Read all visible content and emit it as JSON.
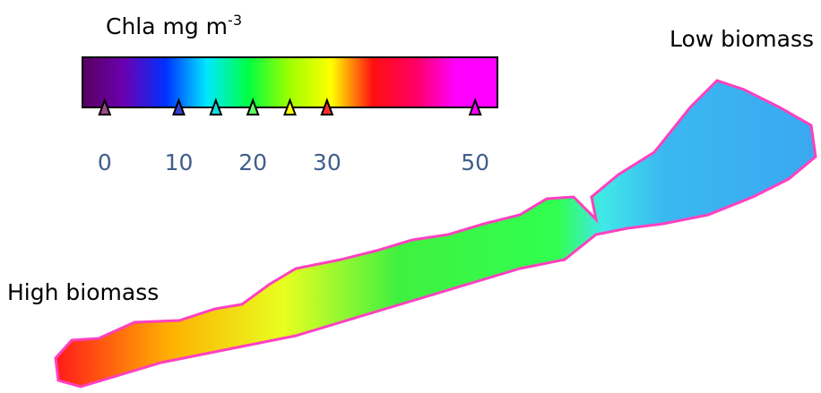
{
  "colorbar": {
    "title": "Chla mg m",
    "title_superscript": "-3",
    "lim": [
      -3,
      53
    ],
    "ticks": [
      0,
      10,
      20,
      30,
      50
    ],
    "gradient": [
      "#5a0060",
      "#6a00b0",
      "#0030ff",
      "#00e8ff",
      "#00ff40",
      "#a0ff00",
      "#ffff00",
      "#ff1010",
      "#ff0060",
      "#ff00ff",
      "#ff00ff"
    ],
    "markers": [
      {
        "value": 0,
        "color": "#9a4a8a"
      },
      {
        "value": 10,
        "color": "#3040d0"
      },
      {
        "value": 15,
        "color": "#10e0e0"
      },
      {
        "value": 20,
        "color": "#60ff60"
      },
      {
        "value": 25,
        "color": "#ffff00"
      },
      {
        "value": 30,
        "color": "#ff3030"
      },
      {
        "value": 50,
        "color": "#ff00ff"
      }
    ]
  },
  "labels": {
    "low": "Low biomass",
    "high": "High biomass"
  }
}
